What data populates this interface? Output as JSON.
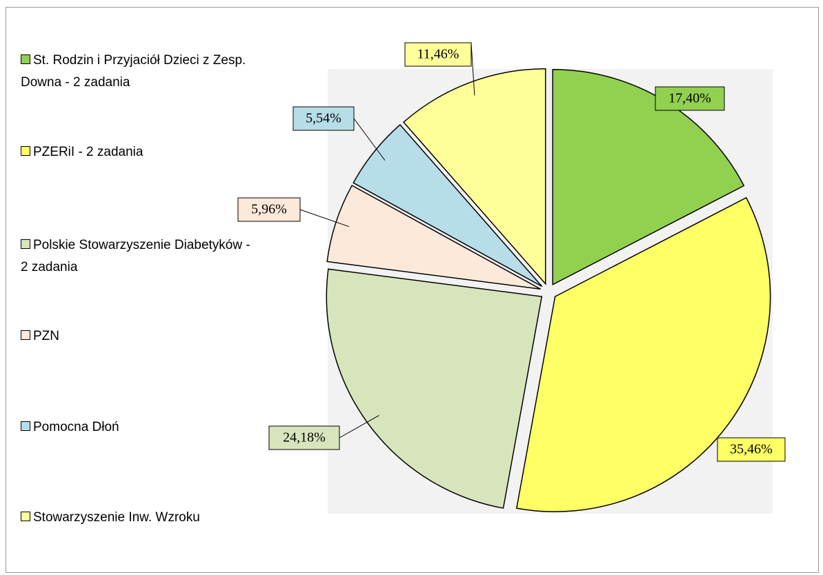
{
  "chart_data": {
    "type": "pie",
    "categories": [
      "St. Rodzin i Przyjaciół Dzieci z Zesp. Downa - 2 zadania",
      "PZERiI - 2 zadania",
      "Polskie Stowarzyszenie Diabetyków - 2 zadania",
      "PZN",
      "Pomocna Dłoń",
      "Stowarzyszenie Inw. Wzroku"
    ],
    "values": [
      17.4,
      35.46,
      24.18,
      5.96,
      5.54,
      11.46
    ],
    "value_labels": [
      "17,40%",
      "35,46%",
      "24,18%",
      "5,96%",
      "5,54%",
      "11,46%"
    ],
    "colors": [
      "#92d050",
      "#ffff66",
      "#d8e4bc",
      "#fde9d9",
      "#b7dde8",
      "#ffff99"
    ],
    "legend": "left"
  }
}
